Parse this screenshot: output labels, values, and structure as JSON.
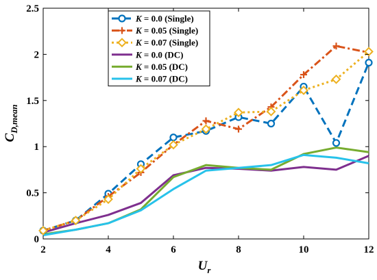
{
  "chart_data": {
    "type": "line",
    "title": "",
    "xlabel_main": "U",
    "xlabel_sub": "r",
    "ylabel_main": "C",
    "ylabel_sub": "D,mean",
    "xlim": [
      2,
      12
    ],
    "ylim": [
      0,
      2.5
    ],
    "xticks": [
      2,
      4,
      6,
      8,
      10,
      12
    ],
    "yticks": [
      0,
      0.5,
      1,
      1.5,
      2,
      2.5
    ],
    "xtick_labels": [
      "2",
      "4",
      "6",
      "8",
      "10",
      "12"
    ],
    "ytick_labels": [
      "0",
      "0.5",
      "1",
      "1.5",
      "2",
      "2.5"
    ],
    "grid": false,
    "legend_position": "top-left",
    "x": [
      2,
      3,
      4,
      5,
      6,
      7,
      8,
      9,
      10,
      11,
      12
    ],
    "series": [
      {
        "legend_var": "K",
        "legend_rest": " = 0.0 (Single)",
        "color": "#0072BD",
        "dash": "dashed",
        "marker": "circle",
        "values": [
          0.09,
          0.2,
          0.49,
          0.81,
          1.1,
          1.17,
          1.32,
          1.25,
          1.65,
          1.04,
          1.91
        ]
      },
      {
        "legend_var": "K",
        "legend_rest": " = 0.05 (Single)",
        "color": "#D95319",
        "dash": "dashdot",
        "marker": "plus",
        "values": [
          0.09,
          0.2,
          0.46,
          0.72,
          1.02,
          1.28,
          1.19,
          1.43,
          1.78,
          2.09,
          2.02
        ]
      },
      {
        "legend_var": "K",
        "legend_rest": " = 0.07 (Single)",
        "color": "#EDB120",
        "dash": "dotted",
        "marker": "diamond",
        "values": [
          0.09,
          0.2,
          0.43,
          0.76,
          1.02,
          1.19,
          1.37,
          1.38,
          1.61,
          1.73,
          2.03
        ]
      },
      {
        "legend_var": "K",
        "legend_rest": " = 0.0 (DC)",
        "color": "#7E2F8E",
        "dash": "solid",
        "marker": "none",
        "values": [
          0.07,
          0.17,
          0.26,
          0.39,
          0.69,
          0.77,
          0.76,
          0.74,
          0.78,
          0.75,
          0.9
        ]
      },
      {
        "legend_var": "K",
        "legend_rest": " = 0.05 (DC)",
        "color": "#77AC30",
        "dash": "solid",
        "marker": "none",
        "values": [
          0.05,
          0.1,
          0.17,
          0.32,
          0.67,
          0.8,
          0.77,
          0.75,
          0.92,
          0.99,
          0.94
        ]
      },
      {
        "legend_var": "K",
        "legend_rest": " = 0.07 (DC)",
        "color": "#27C2EA",
        "dash": "solid",
        "marker": "none",
        "values": [
          0.04,
          0.1,
          0.17,
          0.31,
          0.54,
          0.74,
          0.77,
          0.8,
          0.91,
          0.88,
          0.82
        ]
      }
    ]
  }
}
